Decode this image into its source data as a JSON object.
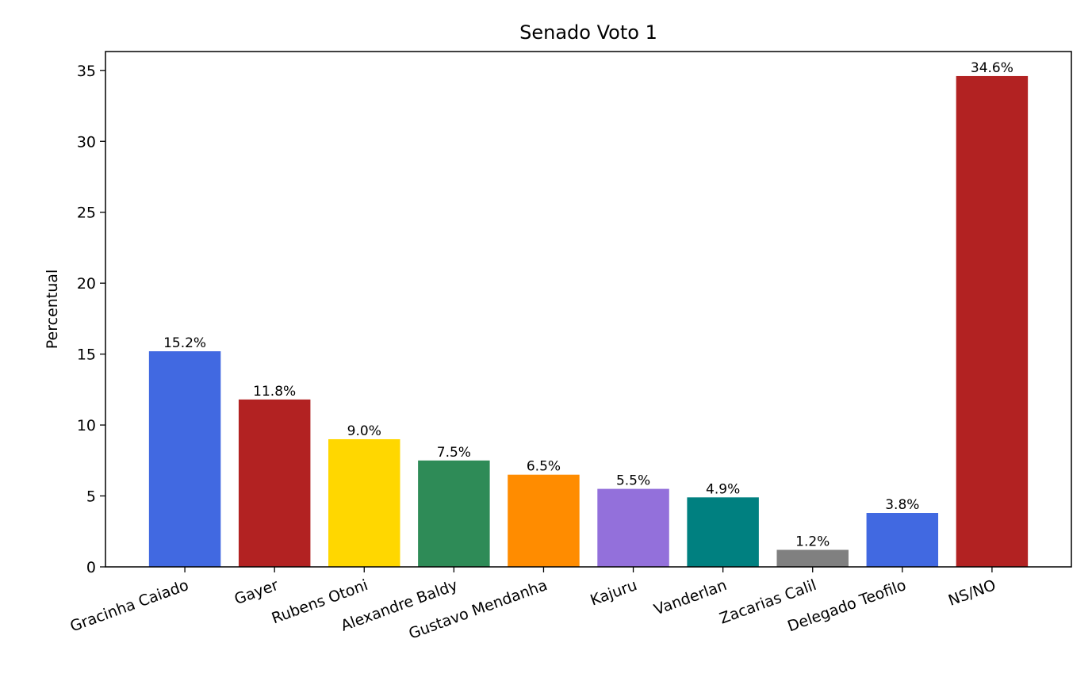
{
  "chart_data": {
    "type": "bar",
    "title": "Senado Voto 1",
    "xlabel": "",
    "ylabel": "Percentual",
    "categories": [
      "Gracinha Caiado",
      "Gayer",
      "Rubens Otoni",
      "Alexandre Baldy",
      "Gustavo Mendanha",
      "Kajuru",
      "Vanderlan",
      "Zacarias Calil",
      "Delegado Teofilo",
      "NS/NO"
    ],
    "values": [
      15.2,
      11.8,
      9.0,
      7.5,
      6.5,
      5.5,
      4.9,
      1.2,
      3.8,
      34.6
    ],
    "data_labels": [
      "15.2%",
      "11.8%",
      "9.0%",
      "7.5%",
      "6.5%",
      "5.5%",
      "4.9%",
      "1.2%",
      "3.8%",
      "34.6%"
    ],
    "colors": [
      "#4169E1",
      "#B22222",
      "#FFD700",
      "#2E8B57",
      "#FF8C00",
      "#9370DB",
      "#008080",
      "#808080",
      "#4169E1",
      "#B22222"
    ],
    "ylim": [
      0,
      36.33
    ],
    "yticks": [
      0,
      5,
      10,
      15,
      20,
      25,
      30,
      35
    ],
    "ytick_labels": [
      "0",
      "5",
      "10",
      "15",
      "20",
      "25",
      "30",
      "35"
    ],
    "grid": false,
    "legend": null
  }
}
